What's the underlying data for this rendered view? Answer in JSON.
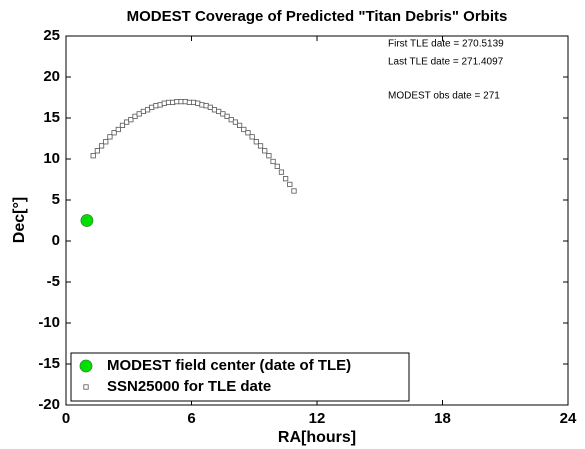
{
  "chart_data": {
    "type": "scatter",
    "title": "MODEST Coverage of Predicted \"Titan Debris\" Orbits",
    "x_label": "RA[hours]",
    "y_label": "Dec[°]",
    "annotations": [
      "First TLE date = 270.5139",
      "Last TLE date = 271.4097",
      "MODEST obs date = 271"
    ],
    "xlim": [
      0,
      24
    ],
    "xticks": [
      0,
      6,
      12,
      18,
      24
    ],
    "ylim": [
      -20,
      25
    ],
    "yticks": [
      -20,
      -15,
      -10,
      -5,
      0,
      5,
      10,
      15,
      20,
      25
    ],
    "grid": false,
    "legend": "lower left",
    "series": [
      {
        "name": "MODEST field center (date of TLE)",
        "color": "#00e000",
        "marker": "circle",
        "x": [
          1.0
        ],
        "values": [
          2.5
        ]
      },
      {
        "name": "SSN25000 for TLE date",
        "color": "#555555",
        "marker": "square",
        "x": [
          1.3,
          1.5,
          1.7,
          1.9,
          2.1,
          2.3,
          2.5,
          2.7,
          2.9,
          3.1,
          3.3,
          3.5,
          3.7,
          3.9,
          4.1,
          4.3,
          4.5,
          4.7,
          4.9,
          5.1,
          5.3,
          5.5,
          5.7,
          5.9,
          6.1,
          6.3,
          6.5,
          6.7,
          6.9,
          7.1,
          7.3,
          7.5,
          7.7,
          7.9,
          8.1,
          8.3,
          8.5,
          8.7,
          8.9,
          9.1,
          9.3,
          9.5,
          9.7,
          9.9,
          10.1,
          10.3,
          10.5,
          10.7,
          10.9
        ],
        "values": [
          10.4,
          11.0,
          11.6,
          12.1,
          12.7,
          13.2,
          13.6,
          14.1,
          14.5,
          14.8,
          15.2,
          15.5,
          15.8,
          16.0,
          16.3,
          16.5,
          16.6,
          16.8,
          16.9,
          16.9,
          17.0,
          17.0,
          17.0,
          16.9,
          16.9,
          16.8,
          16.6,
          16.5,
          16.3,
          16.0,
          15.8,
          15.5,
          15.2,
          14.8,
          14.5,
          14.1,
          13.6,
          13.2,
          12.7,
          12.1,
          11.6,
          11.0,
          10.4,
          9.7,
          9.1,
          8.4,
          7.6,
          6.9,
          6.1
        ]
      }
    ]
  }
}
